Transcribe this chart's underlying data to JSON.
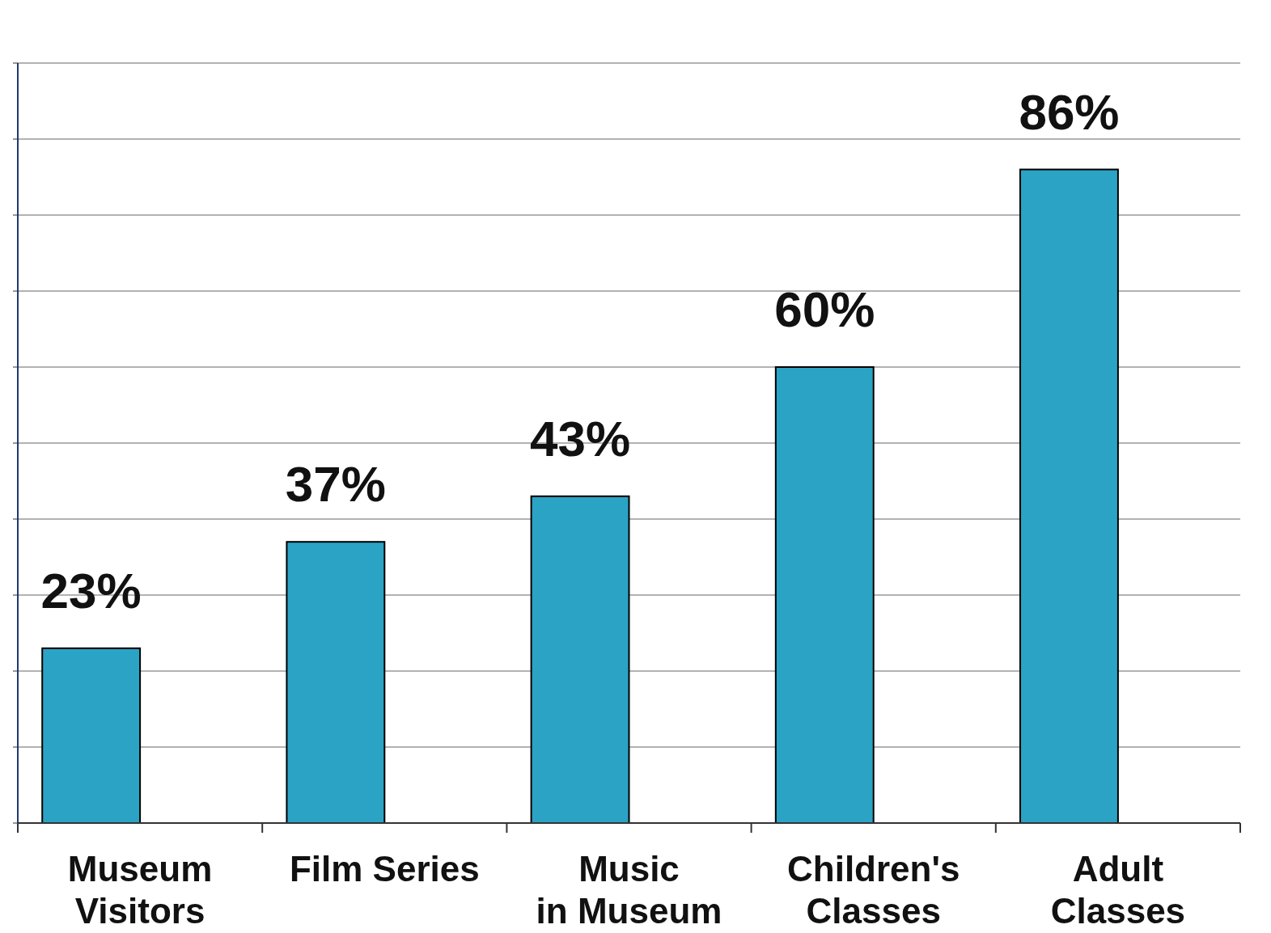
{
  "chart_data": {
    "type": "bar",
    "categories": [
      "Museum Visitors",
      "Film Series",
      "Music in Museum",
      "Children's Classes",
      "Adult Classes"
    ],
    "values": [
      23,
      37,
      43,
      60,
      86
    ],
    "value_labels": [
      "23%",
      "37%",
      "43%",
      "60%",
      "86%"
    ],
    "color": "#2ba3c4",
    "ylim": [
      0,
      100
    ],
    "yticks": [
      {
        "value": 0,
        "label": null
      },
      {
        "value": 10,
        "label": null
      },
      {
        "value": 20,
        "label": null
      },
      {
        "value": 30,
        "label": null
      },
      {
        "value": 40,
        "label": null
      },
      {
        "value": 50,
        "label": null
      },
      {
        "value": 60,
        "label": null
      },
      {
        "value": 70,
        "label": null
      },
      {
        "value": 80,
        "label": null
      },
      {
        "value": 90,
        "label": null
      },
      {
        "value": 100,
        "label": null
      }
    ],
    "grid": "y",
    "tick_labels": "x"
  }
}
